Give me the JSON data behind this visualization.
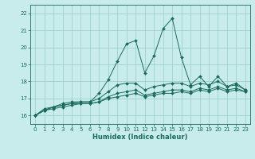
{
  "xlabel": "Humidex (Indice chaleur)",
  "ylabel": "",
  "background_color": "#c8ecec",
  "grid_color": "#a0d0d0",
  "line_color": "#1a6b5a",
  "xlim": [
    -0.5,
    23.5
  ],
  "ylim": [
    15.5,
    22.5
  ],
  "yticks": [
    16,
    17,
    18,
    19,
    20,
    21,
    22
  ],
  "xticks": [
    0,
    1,
    2,
    3,
    4,
    5,
    6,
    7,
    8,
    9,
    10,
    11,
    12,
    13,
    14,
    15,
    16,
    17,
    18,
    19,
    20,
    21,
    22,
    23
  ],
  "series": [
    [
      16.0,
      16.4,
      16.5,
      16.7,
      16.8,
      16.8,
      16.8,
      17.3,
      18.1,
      19.2,
      20.2,
      20.4,
      18.5,
      19.5,
      21.1,
      21.7,
      19.4,
      17.8,
      18.3,
      17.7,
      18.3,
      17.7,
      17.9,
      17.5
    ],
    [
      16.0,
      16.3,
      16.5,
      16.6,
      16.7,
      16.8,
      16.8,
      17.0,
      17.4,
      17.8,
      17.9,
      17.9,
      17.5,
      17.7,
      17.8,
      17.9,
      17.9,
      17.7,
      17.9,
      17.8,
      18.0,
      17.7,
      17.8,
      17.5
    ],
    [
      16.0,
      16.3,
      16.5,
      16.6,
      16.7,
      16.7,
      16.7,
      16.8,
      17.1,
      17.3,
      17.4,
      17.5,
      17.2,
      17.3,
      17.4,
      17.5,
      17.5,
      17.4,
      17.6,
      17.5,
      17.7,
      17.5,
      17.6,
      17.4
    ],
    [
      16.0,
      16.3,
      16.4,
      16.5,
      16.6,
      16.7,
      16.7,
      16.8,
      17.0,
      17.1,
      17.2,
      17.3,
      17.1,
      17.2,
      17.3,
      17.3,
      17.4,
      17.3,
      17.5,
      17.4,
      17.6,
      17.4,
      17.5,
      17.4
    ]
  ]
}
